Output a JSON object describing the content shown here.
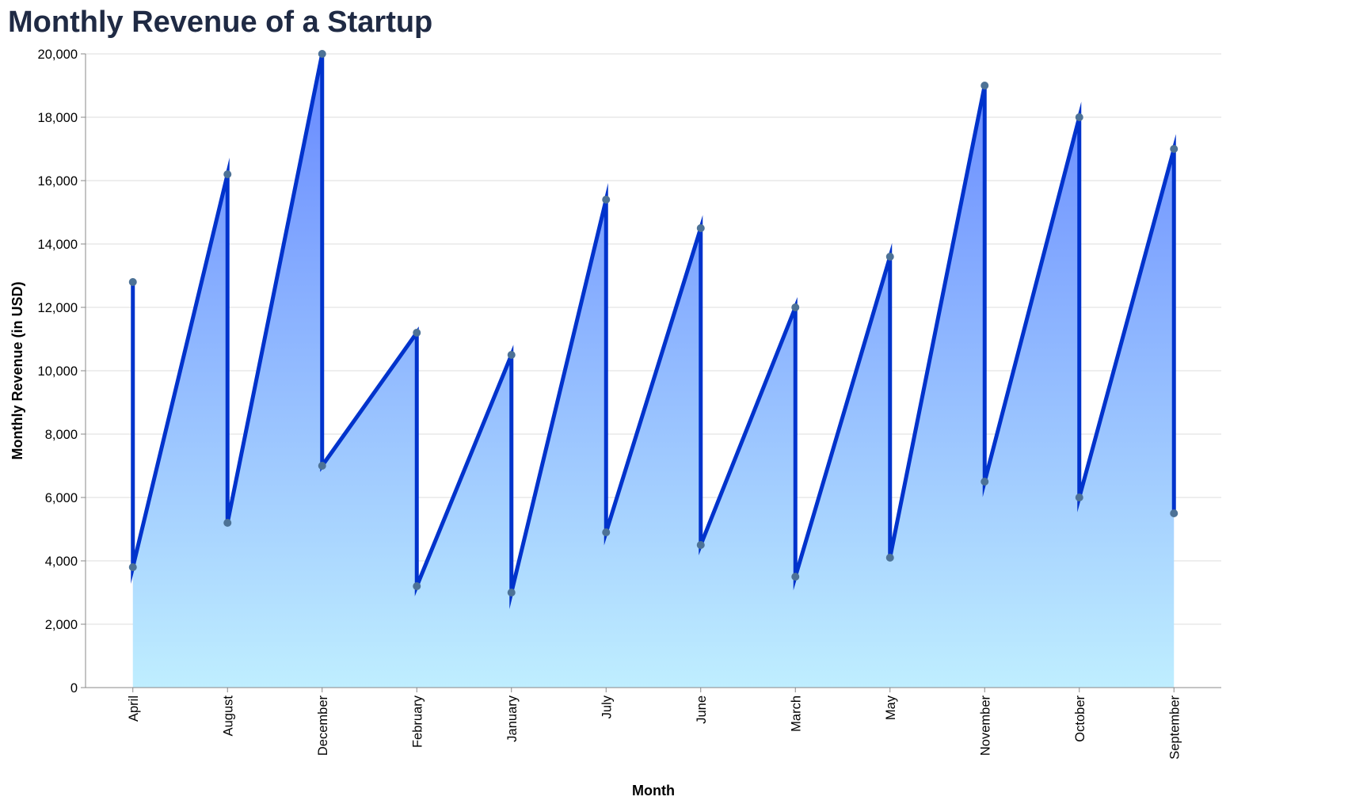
{
  "chart_data": {
    "type": "area",
    "title": "Monthly Revenue of a Startup",
    "xlabel": "Month",
    "ylabel": "Monthly Revenue (in USD)",
    "categories": [
      "April",
      "August",
      "December",
      "February",
      "January",
      "July",
      "June",
      "March",
      "May",
      "November",
      "October",
      "September"
    ],
    "y_ticks": [
      "0",
      "2,000",
      "4,000",
      "6,000",
      "8,000",
      "10,000",
      "12,000",
      "14,000",
      "16,000",
      "18,000",
      "20,000"
    ],
    "ylim": [
      0,
      20000
    ],
    "grid": true,
    "x_order": "alphabetical",
    "points": [
      {
        "month": "April",
        "value": 12800
      },
      {
        "month": "April",
        "value": 3800
      },
      {
        "month": "August",
        "value": 16200
      },
      {
        "month": "August",
        "value": 5200
      },
      {
        "month": "December",
        "value": 20000
      },
      {
        "month": "December",
        "value": 7000
      },
      {
        "month": "February",
        "value": 11200
      },
      {
        "month": "February",
        "value": 3200
      },
      {
        "month": "January",
        "value": 10500
      },
      {
        "month": "January",
        "value": 3000
      },
      {
        "month": "July",
        "value": 15400
      },
      {
        "month": "July",
        "value": 4900
      },
      {
        "month": "June",
        "value": 14500
      },
      {
        "month": "June",
        "value": 4500
      },
      {
        "month": "March",
        "value": 12000
      },
      {
        "month": "March",
        "value": 3500
      },
      {
        "month": "May",
        "value": 13600
      },
      {
        "month": "May",
        "value": 4100
      },
      {
        "month": "November",
        "value": 19000
      },
      {
        "month": "November",
        "value": 6500
      },
      {
        "month": "October",
        "value": 18000
      },
      {
        "month": "October",
        "value": 6000
      },
      {
        "month": "September",
        "value": 17000
      },
      {
        "month": "September",
        "value": 5500
      }
    ],
    "colors": {
      "line": "#0033cc",
      "point": "#4d7296",
      "gradient_top": "#6688ff",
      "gradient_bottom": "#bfeeff",
      "grid": "#dddddd",
      "axis": "#888888"
    }
  }
}
